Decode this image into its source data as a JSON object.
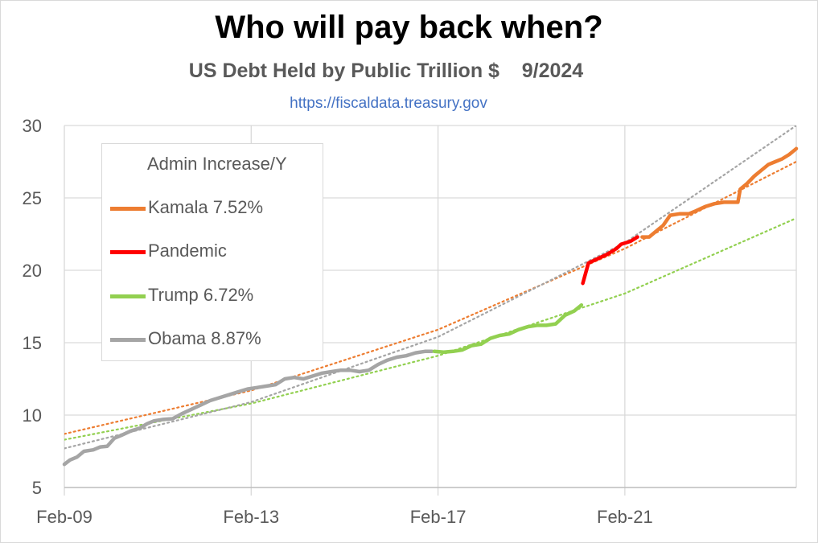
{
  "title": "Who will pay back when?",
  "subtitle": "US Debt Held by Public Trillion $    9/2024",
  "source": "https://fiscaldata.treasury.gov",
  "chart_data": {
    "type": "line",
    "xlabel": "",
    "ylabel": "",
    "x_ticks": [
      "Feb-09",
      "Feb-13",
      "Feb-17",
      "Feb-21"
    ],
    "xlim": [
      2009.08,
      2024.75
    ],
    "ylim": [
      5,
      30
    ],
    "y_ticks": [
      5,
      10,
      15,
      20,
      25,
      30
    ],
    "grid": true,
    "legend": {
      "placement": "top-left",
      "title": "Admin Increase/Y",
      "entries": [
        {
          "name": "Kamala 7.52%",
          "color": "#ed7d31"
        },
        {
          "name": "Pandemic",
          "color": "#ff0000"
        },
        {
          "name": "Trump 6.72%",
          "color": "#92d050"
        },
        {
          "name": "Obama 8.87%",
          "color": "#a5a5a5"
        }
      ]
    },
    "series": [
      {
        "name": "Obama 8.87%",
        "color": "#a5a5a5",
        "x": [
          2009.08,
          2009.2,
          2009.35,
          2009.5,
          2009.7,
          2009.85,
          2010.0,
          2010.15,
          2010.3,
          2010.5,
          2010.7,
          2010.85,
          2011.0,
          2011.2,
          2011.4,
          2011.6,
          2011.8,
          2012.0,
          2012.2,
          2012.4,
          2012.6,
          2012.8,
          2013.0,
          2013.2,
          2013.4,
          2013.6,
          2013.8,
          2014.0,
          2014.2,
          2014.4,
          2014.6,
          2014.8,
          2015.0,
          2015.2,
          2015.4,
          2015.6,
          2015.8,
          2016.0,
          2016.2,
          2016.4,
          2016.6,
          2016.8,
          2016.95
        ],
        "y": [
          6.6,
          6.9,
          7.1,
          7.5,
          7.6,
          7.8,
          7.85,
          8.4,
          8.6,
          8.9,
          9.1,
          9.4,
          9.6,
          9.7,
          9.75,
          10.1,
          10.4,
          10.7,
          11.0,
          11.2,
          11.4,
          11.6,
          11.8,
          11.9,
          12.0,
          12.1,
          12.5,
          12.6,
          12.5,
          12.7,
          12.9,
          13.0,
          13.1,
          13.1,
          13.0,
          13.1,
          13.5,
          13.8,
          14.0,
          14.1,
          14.3,
          14.4,
          14.4
        ]
      },
      {
        "name": "Trump 6.72%",
        "color": "#92d050",
        "x": [
          2017.0,
          2017.2,
          2017.4,
          2017.6,
          2017.8,
          2018.0,
          2018.2,
          2018.4,
          2018.6,
          2018.8,
          2019.0,
          2019.2,
          2019.4,
          2019.6,
          2019.8,
          2020.0,
          2020.15
        ],
        "y": [
          14.4,
          14.35,
          14.4,
          14.5,
          14.8,
          14.9,
          15.3,
          15.5,
          15.6,
          15.9,
          16.1,
          16.2,
          16.2,
          16.3,
          16.9,
          17.2,
          17.6
        ]
      },
      {
        "name": "Pandemic",
        "color": "#ff0000",
        "x": [
          2020.18,
          2020.3,
          2020.5,
          2020.7,
          2020.9,
          2021.0,
          2021.2,
          2021.35
        ],
        "y": [
          19.1,
          20.5,
          20.8,
          21.1,
          21.5,
          21.8,
          22.0,
          22.3
        ]
      },
      {
        "name": "Kamala 7.52%",
        "color": "#ed7d31",
        "x": [
          2021.45,
          2021.6,
          2021.75,
          2021.9,
          2022.05,
          2022.25,
          2022.45,
          2022.6,
          2022.8,
          2023.0,
          2023.2,
          2023.35,
          2023.5,
          2023.55,
          2023.7,
          2023.85,
          2024.0,
          2024.15,
          2024.3,
          2024.45,
          2024.6,
          2024.75
        ],
        "y": [
          22.3,
          22.3,
          22.7,
          23.1,
          23.8,
          23.9,
          23.9,
          24.1,
          24.4,
          24.6,
          24.7,
          24.7,
          24.7,
          25.6,
          26.0,
          26.5,
          26.9,
          27.3,
          27.5,
          27.7,
          28.0,
          28.4
        ]
      }
    ],
    "trendlines": [
      {
        "series": "Kamala 7.52%",
        "color": "#ed7d31",
        "style": "dotted",
        "x": [
          2009.08,
          2013.08,
          2017.08,
          2021.08,
          2024.75
        ],
        "y": [
          8.7,
          11.7,
          15.9,
          21.5,
          27.5
        ]
      },
      {
        "series": "Trump 6.72%",
        "color": "#92d050",
        "style": "dotted",
        "x": [
          2009.08,
          2013.08,
          2017.08,
          2021.08,
          2024.75
        ],
        "y": [
          8.3,
          10.8,
          14.1,
          18.4,
          23.6
        ]
      },
      {
        "series": "Obama 8.87%",
        "color": "#a5a5a5",
        "style": "dotted",
        "x": [
          2009.08,
          2013.08,
          2017.08,
          2021.08,
          2024.75
        ],
        "y": [
          7.7,
          10.9,
          15.4,
          21.9,
          30.0
        ]
      }
    ]
  }
}
